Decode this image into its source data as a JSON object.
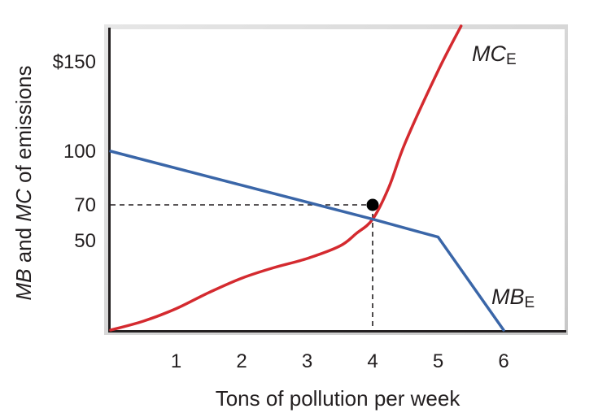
{
  "chart_data": {
    "type": "line",
    "xlabel": "Tons of pollution per week",
    "ylabel_parts": [
      {
        "text": "MB",
        "italic": true
      },
      {
        "text": " and ",
        "italic": false
      },
      {
        "text": "MC",
        "italic": true
      },
      {
        "text": " of emissions",
        "italic": false
      }
    ],
    "xlim": [
      0,
      7
    ],
    "ylim": [
      0,
      170
    ],
    "x_ticks": [
      {
        "value": 1,
        "label": "1"
      },
      {
        "value": 2,
        "label": "2"
      },
      {
        "value": 3,
        "label": "3"
      },
      {
        "value": 4,
        "label": "4"
      },
      {
        "value": 5,
        "label": "5"
      },
      {
        "value": 6,
        "label": "6"
      }
    ],
    "y_ticks": [
      {
        "value": 50,
        "label": "50"
      },
      {
        "value": 70,
        "label": "70"
      },
      {
        "value": 100,
        "label": "100"
      },
      {
        "value": 150,
        "label": "$150"
      }
    ],
    "series": [
      {
        "name": "MC",
        "name_sub": "E",
        "color": "#d42a2f",
        "points": [
          [
            0,
            0
          ],
          [
            0.5,
            5
          ],
          [
            1,
            12
          ],
          [
            1.5,
            21
          ],
          [
            2,
            29
          ],
          [
            2.5,
            35
          ],
          [
            3,
            40
          ],
          [
            3.5,
            47
          ],
          [
            3.75,
            54
          ],
          [
            4,
            62
          ],
          [
            4.25,
            80
          ],
          [
            4.5,
            105
          ],
          [
            5,
            145
          ],
          [
            5.35,
            170
          ]
        ]
      },
      {
        "name": "MB",
        "name_sub": "E",
        "color": "#3a66a8",
        "points": [
          [
            0,
            100
          ],
          [
            4,
            62
          ],
          [
            5,
            52
          ],
          [
            6,
            0
          ]
        ]
      }
    ],
    "equilibrium": {
      "x": 4,
      "y": 62,
      "guide_label_y": 70,
      "color": "#000000"
    }
  }
}
